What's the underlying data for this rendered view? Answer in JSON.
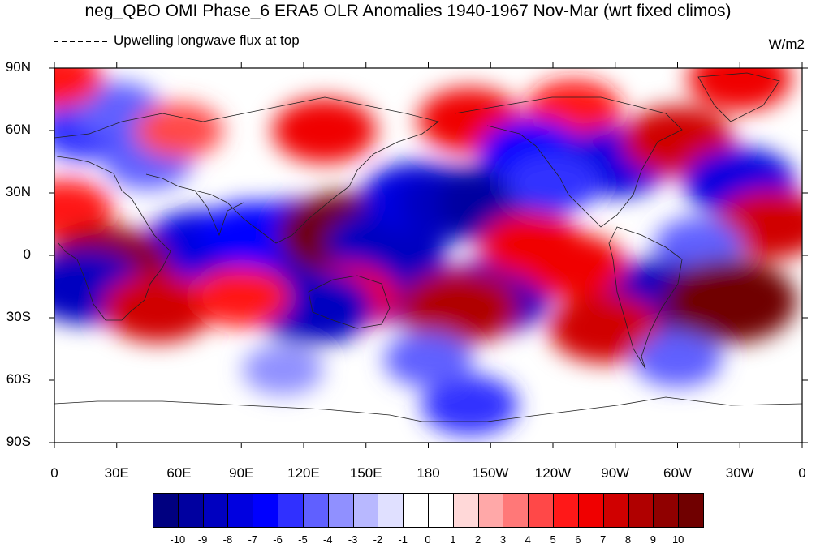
{
  "title": "neg_QBO OMI Phase_6 ERA5 OLR Anomalies 1940-1967 Nov-Mar (wrt fixed climos)",
  "legend_text": "Upwelling longwave flux at top",
  "units": "W/m2",
  "map": {
    "y_ticks": [
      "90N",
      "60N",
      "30N",
      "0",
      "30S",
      "60S",
      "90S"
    ],
    "x_ticks": [
      "0",
      "30E",
      "60E",
      "90E",
      "120E",
      "150E",
      "180",
      "150W",
      "120W",
      "90W",
      "60W",
      "30W",
      "0"
    ],
    "anomaly_blobs": [
      {
        "lon": 15,
        "lat": 60,
        "value": -5
      },
      {
        "lon": 30,
        "lat": 70,
        "value": -4
      },
      {
        "lon": 5,
        "lat": 22,
        "value": 5
      },
      {
        "lon": 45,
        "lat": 45,
        "value": -4
      },
      {
        "lon": 70,
        "lat": 5,
        "value": -7
      },
      {
        "lon": 100,
        "lat": -5,
        "value": -8
      },
      {
        "lon": 115,
        "lat": 10,
        "value": -7
      },
      {
        "lon": 95,
        "lat": 10,
        "value": -6
      },
      {
        "lon": 140,
        "lat": 10,
        "value": 10
      },
      {
        "lon": 160,
        "lat": 5,
        "value": -8
      },
      {
        "lon": 175,
        "lat": 28,
        "value": -7
      },
      {
        "lon": 195,
        "lat": 25,
        "value": -8
      },
      {
        "lon": 215,
        "lat": 25,
        "value": -9
      },
      {
        "lon": 165,
        "lat": -15,
        "value": -8
      },
      {
        "lon": 210,
        "lat": -20,
        "value": -8
      },
      {
        "lon": 195,
        "lat": -25,
        "value": 8
      },
      {
        "lon": 140,
        "lat": -20,
        "value": 6
      },
      {
        "lon": 125,
        "lat": -25,
        "value": -8
      },
      {
        "lon": 25,
        "lat": -5,
        "value": 9
      },
      {
        "lon": 15,
        "lat": -15,
        "value": -8
      },
      {
        "lon": 50,
        "lat": -25,
        "value": 7
      },
      {
        "lon": 90,
        "lat": -20,
        "value": 5
      },
      {
        "lon": 130,
        "lat": 60,
        "value": 6
      },
      {
        "lon": 200,
        "lat": 65,
        "value": 6
      },
      {
        "lon": 250,
        "lat": 70,
        "value": 5
      },
      {
        "lon": 230,
        "lat": 50,
        "value": -6
      },
      {
        "lon": 270,
        "lat": 45,
        "value": -7
      },
      {
        "lon": 300,
        "lat": 55,
        "value": 7
      },
      {
        "lon": 330,
        "lat": 35,
        "value": -7
      },
      {
        "lon": 345,
        "lat": 15,
        "value": 7
      },
      {
        "lon": 310,
        "lat": 5,
        "value": -4
      },
      {
        "lon": 290,
        "lat": -20,
        "value": -8
      },
      {
        "lon": 325,
        "lat": -22,
        "value": 10
      },
      {
        "lon": 265,
        "lat": -35,
        "value": 7
      },
      {
        "lon": 250,
        "lat": -5,
        "value": 6
      },
      {
        "lon": 230,
        "lat": 5,
        "value": 6
      },
      {
        "lon": 240,
        "lat": 35,
        "value": -5
      },
      {
        "lon": 300,
        "lat": -50,
        "value": -4
      },
      {
        "lon": 200,
        "lat": -72,
        "value": -5
      },
      {
        "lon": 60,
        "lat": 60,
        "value": 4
      },
      {
        "lon": 0,
        "lat": 85,
        "value": 5
      },
      {
        "lon": 330,
        "lat": 85,
        "value": 6
      },
      {
        "lon": 180,
        "lat": -50,
        "value": -4
      },
      {
        "lon": 110,
        "lat": -55,
        "value": -3
      }
    ]
  },
  "colorbar": {
    "labels": [
      "-10",
      "-9",
      "-8",
      "-7",
      "-6",
      "-5",
      "-4",
      "-3",
      "-2",
      "-1",
      "0",
      "1",
      "2",
      "3",
      "4",
      "5",
      "6",
      "7",
      "8",
      "9",
      "10"
    ],
    "colors": [
      "#000080",
      "#0000a0",
      "#0000c0",
      "#0000e0",
      "#0000ff",
      "#3030ff",
      "#6060ff",
      "#9090ff",
      "#b8b8ff",
      "#e0e0ff",
      "#ffffff",
      "#ffffff",
      "#ffd8d8",
      "#ffa8a8",
      "#ff7878",
      "#ff4848",
      "#ff1818",
      "#f00000",
      "#d00000",
      "#b00000",
      "#900000",
      "#700000"
    ]
  }
}
